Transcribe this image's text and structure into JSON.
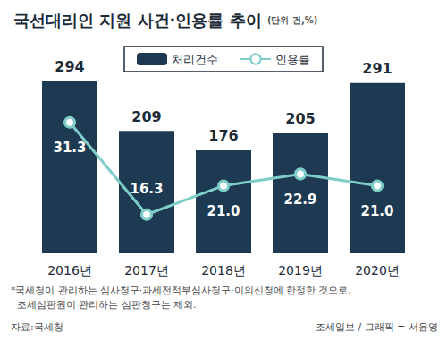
{
  "chart_data": {
    "type": "bar",
    "title": "국선대리인 지원 사건·인용률 추이",
    "subtitle": "(단위 건,%)",
    "categories": [
      "2016년",
      "2017년",
      "2018년",
      "2019년",
      "2020년"
    ],
    "series": [
      {
        "name": "처리건수",
        "type": "bar",
        "color": "#1d3a52",
        "values": [
          294,
          209,
          176,
          205,
          291
        ]
      },
      {
        "name": "인용률",
        "type": "line",
        "axis": "y2",
        "color": "#7fcdc9",
        "marker": "circle",
        "values": [
          31.3,
          16.3,
          21.0,
          22.9,
          21.0
        ],
        "value_labels": [
          "31.3",
          "16.3",
          "21.0",
          "22.9",
          "21.0"
        ]
      }
    ],
    "ylim": [
      0,
      315
    ],
    "y2lim": [
      10,
      40
    ],
    "data_labels": true,
    "tick_labels": "x",
    "legend": "top",
    "grid": false,
    "notes": [
      "*국세청이 관리하는 심사청구·과세전적부심사청구·이의신청에 한정한 것으로,",
      "조세심판원이 관리하는 심판청구는 제외."
    ],
    "source": "자료:국세청",
    "credit": "조세일보 / 그래픽 = 서윤영"
  }
}
